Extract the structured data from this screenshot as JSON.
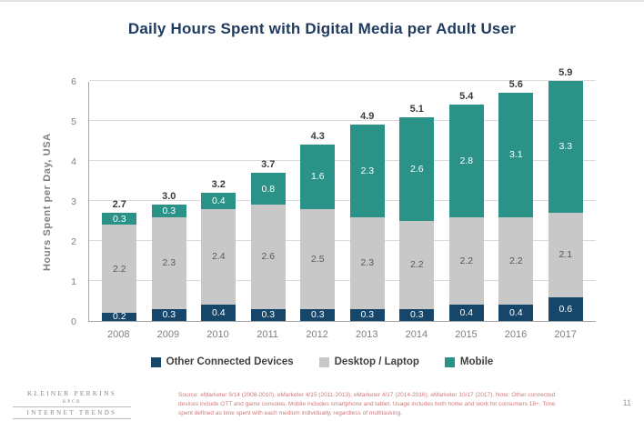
{
  "chart_data": {
    "type": "bar",
    "stacked": true,
    "title": "Daily Hours Spent with Digital Media per Adult User",
    "ylabel": "Hours Spent per Day, USA",
    "ylim": [
      0,
      6
    ],
    "yticks": [
      0,
      1,
      2,
      3,
      4,
      5,
      6
    ],
    "grid": true,
    "legend_position": "bottom",
    "categories": [
      "2008",
      "2009",
      "2010",
      "2011",
      "2012",
      "2013",
      "2014",
      "2015",
      "2016",
      "2017"
    ],
    "series": [
      {
        "name": "Other Connected Devices",
        "color": "#17466b",
        "label_color": "#ffffff",
        "values": [
          0.2,
          0.3,
          0.4,
          0.3,
          0.3,
          0.3,
          0.3,
          0.4,
          0.4,
          0.6
        ]
      },
      {
        "name": "Desktop / Laptop",
        "color": "#c8c8c8",
        "label_color": "#595959",
        "values": [
          2.2,
          2.3,
          2.4,
          2.6,
          2.5,
          2.3,
          2.2,
          2.2,
          2.2,
          2.1
        ]
      },
      {
        "name": "Mobile",
        "color": "#2a9287",
        "label_color": "#ffffff",
        "values": [
          0.3,
          0.3,
          0.4,
          0.8,
          1.6,
          2.3,
          2.6,
          2.8,
          3.1,
          3.3
        ]
      }
    ],
    "totals": [
      2.7,
      3.0,
      3.2,
      3.7,
      4.3,
      4.9,
      5.1,
      5.4,
      5.6,
      5.9
    ]
  },
  "footer": {
    "brand_line1": "KLEINER PERKINS",
    "brand_line2": "KPCB",
    "brand_line3": "INTERNET TRENDS",
    "source_text": "Source: eMarketer 9/14 (2008-2010), eMarketer 4/15 (2011-2013), eMarketer 4/17 (2014-2016), eMarketer 10/17 (2017). Note: Other connected devices include OTT and game consoles. Mobile includes smartphone and tablet. Usage includes both home and work for consumers 18+. Time spent defined as time spent with each medium individually, regardless of multitasking.",
    "page_number": "11"
  }
}
